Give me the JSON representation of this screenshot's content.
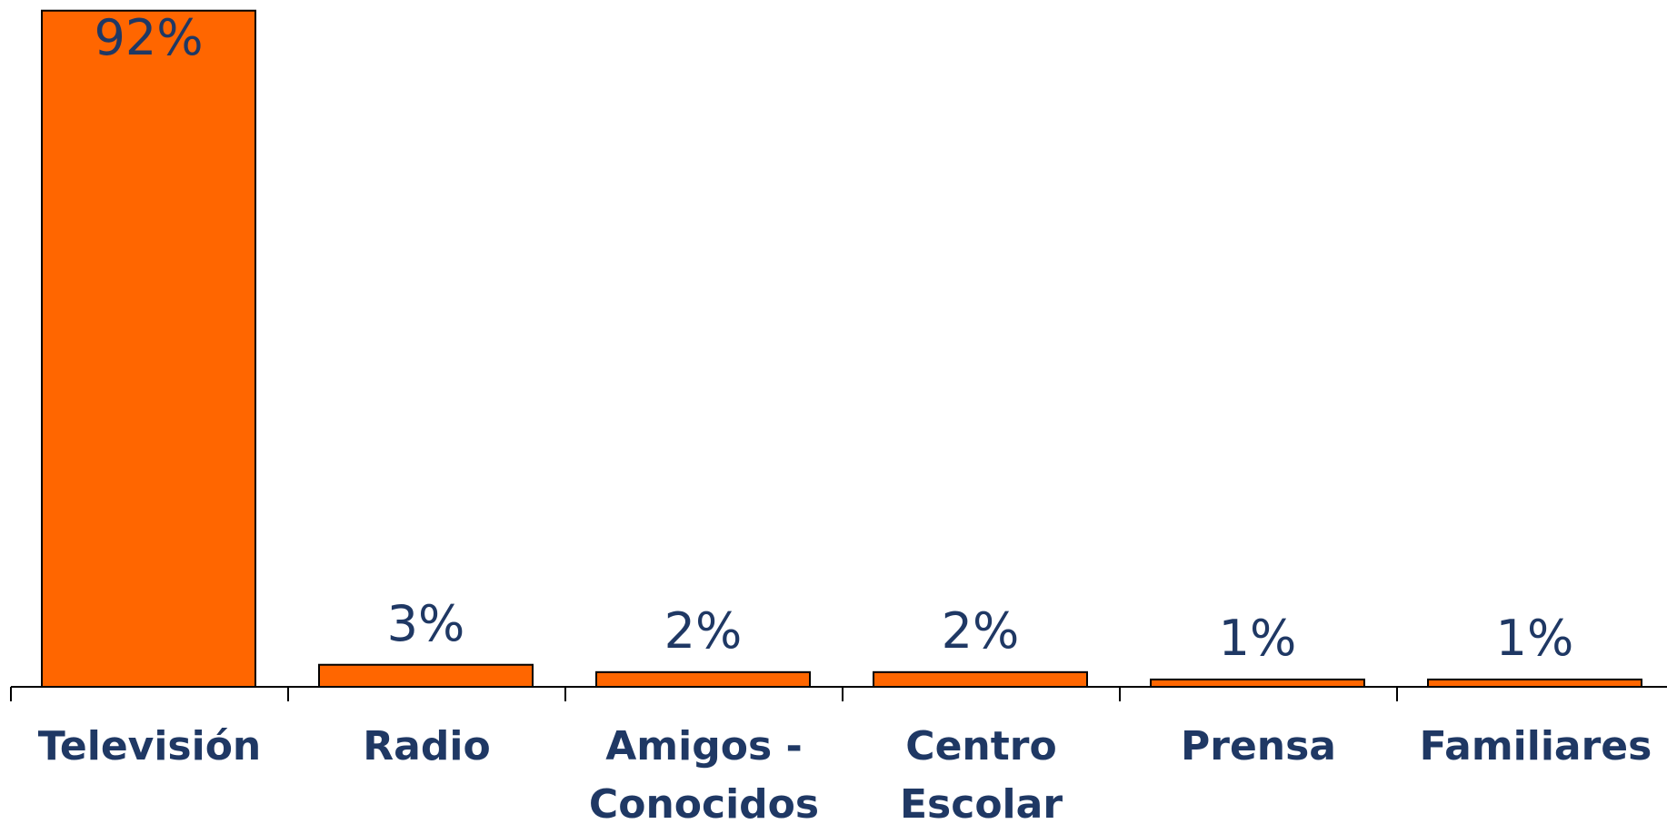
{
  "chart_data": {
    "type": "bar",
    "categories": [
      "Televisión",
      "Radio",
      "Amigos - Conocidos",
      "Centro Escolar",
      "Prensa",
      "Familiares"
    ],
    "values": [
      92,
      3,
      2,
      2,
      1,
      1
    ],
    "value_labels": [
      "92%",
      "3%",
      "2%",
      "2%",
      "1%",
      "1%"
    ],
    "color": "#ff6600"
  }
}
